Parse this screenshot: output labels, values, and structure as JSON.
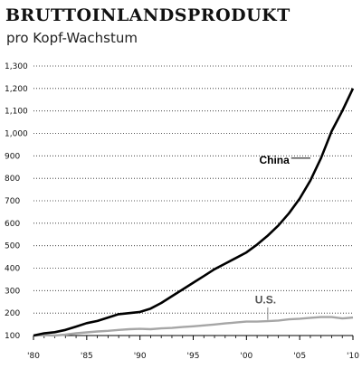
{
  "header": {
    "title": "BRUTTOINLANDSPRODUKT",
    "subtitle": "pro Kopf-Wachstum"
  },
  "chart_data": {
    "type": "line",
    "title": "BRUTTOINLANDSPRODUKT",
    "subtitle": "pro Kopf-Wachstum",
    "xlabel": "",
    "ylabel": "",
    "xlim": [
      1980,
      2010
    ],
    "ylim": [
      100,
      1300
    ],
    "grid": "horizontal dotted",
    "y_ticks": [
      {
        "value": 100,
        "label": "100"
      },
      {
        "value": 200,
        "label": "200"
      },
      {
        "value": 300,
        "label": "300"
      },
      {
        "value": 400,
        "label": "400"
      },
      {
        "value": 500,
        "label": "500"
      },
      {
        "value": 600,
        "label": "600"
      },
      {
        "value": 700,
        "label": "700"
      },
      {
        "value": 800,
        "label": "800"
      },
      {
        "value": 900,
        "label": "900"
      },
      {
        "value": 1000,
        "label": "1,000"
      },
      {
        "value": 1100,
        "label": "1,100"
      },
      {
        "value": 1200,
        "label": "1,200"
      },
      {
        "value": 1300,
        "label": "1,300"
      }
    ],
    "x_ticks": [
      {
        "value": 1980,
        "label": "'80"
      },
      {
        "value": 1985,
        "label": "'85"
      },
      {
        "value": 1990,
        "label": "'90"
      },
      {
        "value": 1995,
        "label": "'95"
      },
      {
        "value": 2000,
        "label": "'00"
      },
      {
        "value": 2005,
        "label": "'05"
      },
      {
        "value": 2010,
        "label": "'10"
      }
    ],
    "series": [
      {
        "name": "China",
        "color": "#000000",
        "x": [
          1980,
          1981,
          1982,
          1983,
          1984,
          1985,
          1986,
          1987,
          1988,
          1989,
          1990,
          1991,
          1992,
          1993,
          1994,
          1995,
          1996,
          1997,
          1998,
          1999,
          2000,
          2001,
          2002,
          2003,
          2004,
          2005,
          2006,
          2007,
          2008,
          2009,
          2010
        ],
        "y": [
          100,
          110,
          115,
          125,
          140,
          155,
          165,
          180,
          195,
          200,
          205,
          220,
          245,
          275,
          305,
          335,
          365,
          395,
          420,
          445,
          470,
          505,
          545,
          590,
          645,
          710,
          790,
          890,
          1010,
          1100,
          1200
        ]
      },
      {
        "name": "U.S.",
        "color": "#a6a6a6",
        "x": [
          1980,
          1981,
          1982,
          1983,
          1984,
          1985,
          1986,
          1987,
          1988,
          1989,
          1990,
          1991,
          1992,
          1993,
          1994,
          1995,
          1996,
          1997,
          1998,
          1999,
          2000,
          2001,
          2002,
          2003,
          2004,
          2005,
          2006,
          2007,
          2008,
          2009,
          2010
        ],
        "y": [
          100,
          102,
          100,
          104,
          110,
          114,
          118,
          121,
          125,
          128,
          130,
          128,
          132,
          134,
          138,
          141,
          145,
          149,
          154,
          158,
          162,
          162,
          164,
          167,
          172,
          175,
          179,
          182,
          182,
          176,
          180
        ]
      }
    ],
    "annotations": [
      {
        "text": "China",
        "series": "China"
      },
      {
        "text": "U.S.",
        "series": "U.S."
      }
    ]
  }
}
